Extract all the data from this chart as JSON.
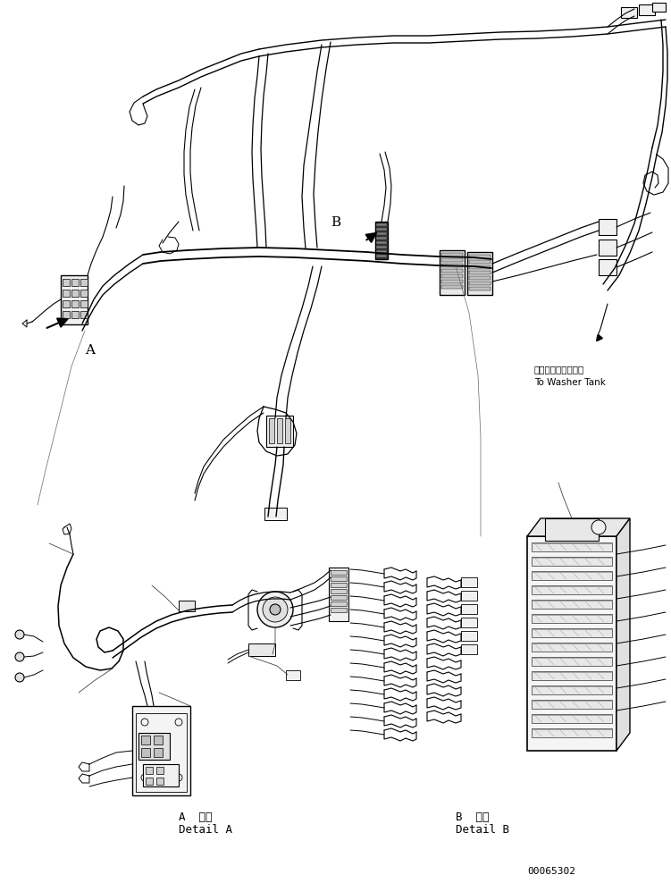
{
  "figure_width": 7.51,
  "figure_height": 9.88,
  "dpi": 100,
  "bg_color": "#ffffff",
  "part_number": "00065302",
  "washer_tank_jp": "ウォッシャタンクヘ",
  "washer_tank_en": "To Washer Tank",
  "label_A": "A",
  "label_B": "B",
  "detail_A_jp": "A 詳細",
  "detail_A_en": "Detail A",
  "detail_B_jp": "B 詳細",
  "detail_B_en": "Detail B",
  "lw_main": 1.0,
  "lw_thin": 0.6,
  "lw_thick": 1.5
}
